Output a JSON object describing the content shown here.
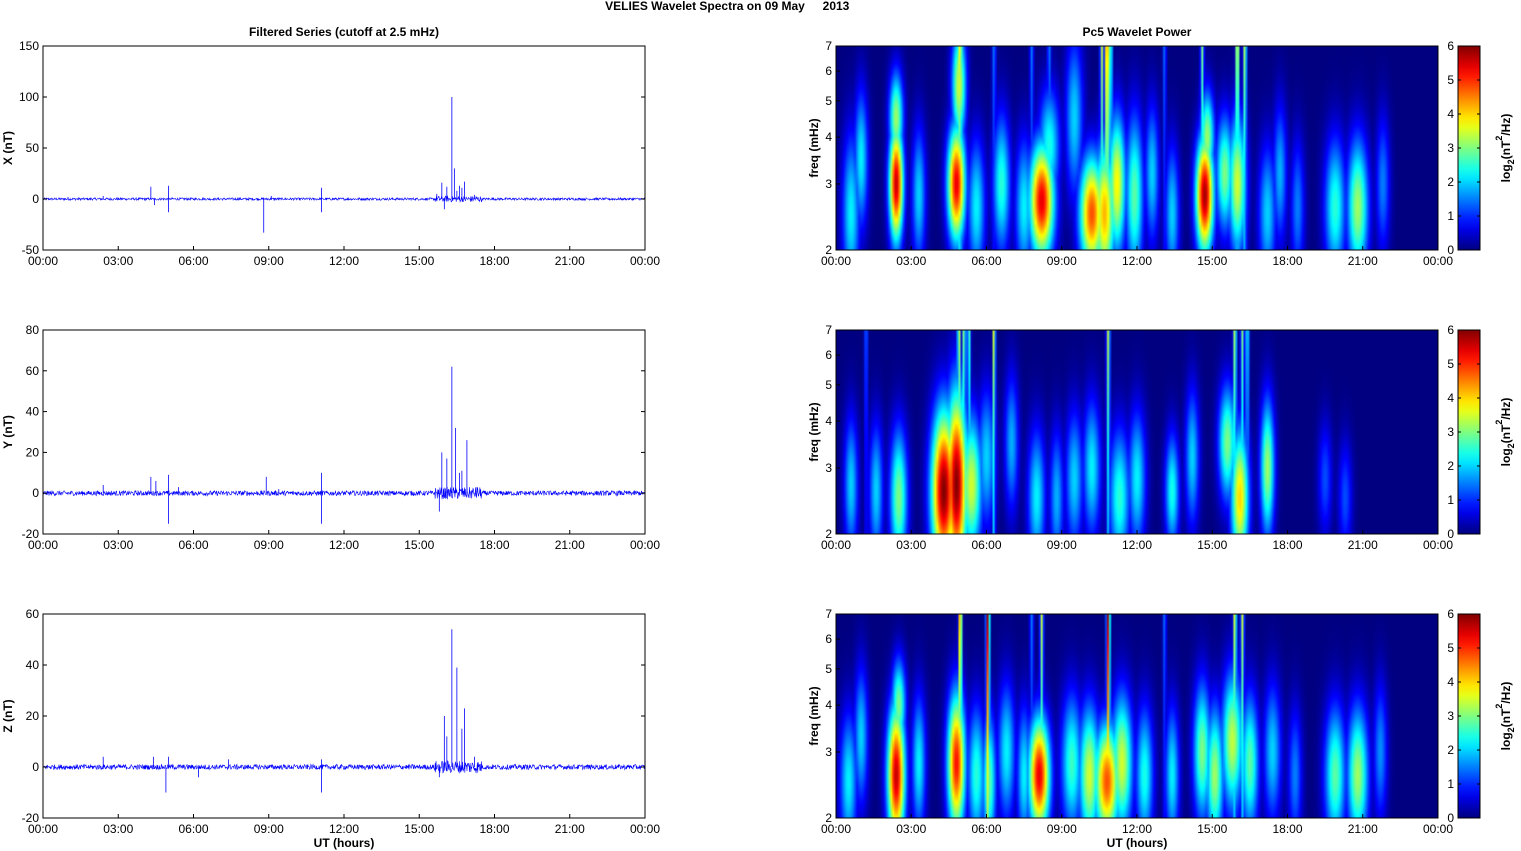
{
  "figure": {
    "suptitle_left": "VELIES Wavelet Spectra on 09 May",
    "suptitle_right": "2013",
    "left_column_title": "Filtered Series (cutoff at 2.5 mHz)",
    "right_column_title": "Pc5 Wavelet Power",
    "xlabel": "UT (hours)",
    "colors": {
      "trace": "#0000ff",
      "background_field": "#00008f"
    }
  },
  "chart_data": [
    {
      "type": "line",
      "id": "x",
      "ylabel": "X (nT)",
      "ylim": [
        -50,
        150
      ],
      "yticks": [
        "-50",
        "0",
        "50",
        "100",
        "150"
      ],
      "xticks": [
        "00:00",
        "03:00",
        "06:00",
        "09:00",
        "12:00",
        "15:00",
        "18:00",
        "21:00",
        "00:00"
      ],
      "xlim_hours": [
        0,
        24
      ],
      "spikes": [
        [
          1.0,
          2
        ],
        [
          2.4,
          3
        ],
        [
          4.3,
          12
        ],
        [
          4.45,
          -6
        ],
        [
          5.0,
          13
        ],
        [
          5.0,
          -13
        ],
        [
          8.8,
          -33
        ],
        [
          9.1,
          3
        ],
        [
          11.1,
          11
        ],
        [
          11.1,
          -13
        ],
        [
          15.7,
          5
        ],
        [
          15.9,
          16
        ],
        [
          16.0,
          -10
        ],
        [
          16.1,
          12
        ],
        [
          16.3,
          100
        ],
        [
          16.4,
          30
        ],
        [
          16.5,
          8
        ],
        [
          16.6,
          13
        ],
        [
          16.7,
          11
        ],
        [
          16.8,
          17
        ],
        [
          17.2,
          4
        ]
      ],
      "noise_amplitude": 1.2,
      "burst": [
        15.6,
        17.5
      ],
      "burst_amplitude": 3
    },
    {
      "type": "line",
      "id": "y",
      "ylabel": "Y (nT)",
      "ylim": [
        -20,
        80
      ],
      "yticks": [
        "-20",
        "0",
        "20",
        "40",
        "60",
        "80"
      ],
      "xticks": [
        "00:00",
        "03:00",
        "06:00",
        "09:00",
        "12:00",
        "15:00",
        "18:00",
        "21:00",
        "00:00"
      ],
      "xlim_hours": [
        0,
        24
      ],
      "spikes": [
        [
          2.4,
          4
        ],
        [
          4.3,
          8
        ],
        [
          4.5,
          6
        ],
        [
          5.0,
          9
        ],
        [
          5.0,
          -15
        ],
        [
          5.4,
          3
        ],
        [
          8.9,
          8
        ],
        [
          9.4,
          2
        ],
        [
          11.1,
          10
        ],
        [
          11.1,
          -15
        ],
        [
          15.8,
          -9
        ],
        [
          15.9,
          20
        ],
        [
          16.1,
          17
        ],
        [
          16.3,
          62
        ],
        [
          16.45,
          32
        ],
        [
          16.6,
          10
        ],
        [
          16.7,
          11
        ],
        [
          16.9,
          26
        ],
        [
          17.3,
          3
        ]
      ],
      "noise_amplitude": 1.2,
      "burst": [
        15.6,
        17.5
      ],
      "burst_amplitude": 3
    },
    {
      "type": "line",
      "id": "z",
      "ylabel": "Z (nT)",
      "ylim": [
        -20,
        60
      ],
      "yticks": [
        "-20",
        "0",
        "20",
        "40",
        "60"
      ],
      "xticks": [
        "00:00",
        "03:00",
        "06:00",
        "09:00",
        "12:00",
        "15:00",
        "18:00",
        "21:00",
        "00:00"
      ],
      "xlim_hours": [
        0,
        24
      ],
      "spikes": [
        [
          2.4,
          4
        ],
        [
          4.4,
          4
        ],
        [
          4.9,
          -10
        ],
        [
          5.0,
          4
        ],
        [
          6.2,
          -4
        ],
        [
          7.4,
          3
        ],
        [
          11.1,
          3
        ],
        [
          11.1,
          -10
        ],
        [
          15.8,
          -4
        ],
        [
          16.0,
          20
        ],
        [
          16.1,
          12
        ],
        [
          16.3,
          54
        ],
        [
          16.5,
          39
        ],
        [
          16.7,
          15
        ],
        [
          16.8,
          23
        ],
        [
          17.2,
          4
        ]
      ],
      "noise_amplitude": 1.0,
      "burst": [
        15.6,
        17.5
      ],
      "burst_amplitude": 2.5
    },
    {
      "type": "heatmap",
      "id": "wx",
      "ylabel": "freq (mHz)",
      "yscale": "log",
      "ylim_mHz": [
        2,
        7
      ],
      "yticks": [
        "2",
        "3",
        "4",
        "5",
        "6",
        "7"
      ],
      "xticks": [
        "00:00",
        "03:00",
        "06:00",
        "09:00",
        "12:00",
        "15:00",
        "18:00",
        "21:00",
        "00:00"
      ],
      "colorbar": {
        "ticks": [
          "0",
          "1",
          "2",
          "3",
          "4",
          "5",
          "6"
        ],
        "label_base": "log",
        "label_sub": "2",
        "label_mid": "(nT",
        "label_sup": "2",
        "label_end": "/Hz)",
        "range": [
          0,
          6
        ]
      },
      "blobs": [
        [
          0.6,
          2.5,
          2.2,
          0.25,
          0.35
        ],
        [
          1.0,
          3.5,
          2.2,
          0.2,
          0.3
        ],
        [
          2.4,
          3.0,
          5.6,
          0.2,
          0.25
        ],
        [
          2.4,
          4.5,
          3.2,
          0.2,
          0.2
        ],
        [
          3.3,
          2.8,
          2.0,
          0.2,
          0.3
        ],
        [
          4.8,
          3.0,
          5.4,
          0.25,
          0.25
        ],
        [
          4.9,
          5.5,
          3.5,
          0.2,
          0.25
        ],
        [
          5.6,
          2.6,
          2.2,
          0.25,
          0.3
        ],
        [
          6.6,
          3.0,
          2.5,
          0.25,
          0.3
        ],
        [
          7.5,
          2.6,
          2.2,
          0.25,
          0.3
        ],
        [
          8.2,
          2.7,
          5.4,
          0.35,
          0.25
        ],
        [
          8.5,
          3.8,
          2.4,
          0.3,
          0.25
        ],
        [
          9.5,
          4.5,
          2.0,
          0.25,
          0.35
        ],
        [
          10.2,
          2.5,
          4.8,
          0.35,
          0.25
        ],
        [
          10.7,
          2.5,
          4.2,
          0.3,
          0.3
        ],
        [
          11.2,
          3.0,
          3.8,
          0.25,
          0.3
        ],
        [
          11.9,
          2.8,
          2.8,
          0.25,
          0.35
        ],
        [
          12.6,
          3.2,
          2.0,
          0.2,
          0.3
        ],
        [
          13.4,
          2.5,
          2.0,
          0.2,
          0.3
        ],
        [
          14.7,
          2.8,
          5.8,
          0.25,
          0.25
        ],
        [
          14.8,
          4.0,
          3.2,
          0.2,
          0.2
        ],
        [
          15.5,
          3.2,
          3.0,
          0.25,
          0.25
        ],
        [
          16.0,
          3.0,
          3.5,
          0.25,
          0.3
        ],
        [
          17.2,
          2.5,
          2.0,
          0.25,
          0.3
        ],
        [
          17.7,
          3.2,
          1.8,
          0.2,
          0.3
        ],
        [
          18.4,
          2.6,
          1.5,
          0.2,
          0.3
        ],
        [
          19.9,
          2.6,
          2.5,
          0.3,
          0.3
        ],
        [
          20.8,
          2.6,
          3.2,
          0.3,
          0.3
        ],
        [
          21.8,
          3.0,
          1.5,
          0.2,
          0.3
        ]
      ],
      "streaks": [
        [
          4.95,
          4.5,
          0.05
        ],
        [
          10.6,
          3.5,
          0.05
        ],
        [
          10.8,
          5.5,
          0.05
        ],
        [
          10.95,
          3.0,
          0.05
        ],
        [
          14.6,
          3.0,
          0.05
        ],
        [
          16.0,
          4.2,
          0.05
        ],
        [
          16.3,
          3.5,
          0.05
        ],
        [
          7.8,
          1.5,
          0.06
        ],
        [
          6.3,
          1.5,
          0.06
        ],
        [
          8.5,
          1.5,
          0.06
        ],
        [
          13.1,
          1.5,
          0.05
        ]
      ]
    },
    {
      "type": "heatmap",
      "id": "wy",
      "ylabel": "freq (mHz)",
      "yscale": "log",
      "ylim_mHz": [
        2,
        7
      ],
      "yticks": [
        "2",
        "3",
        "4",
        "5",
        "6",
        "7"
      ],
      "xticks": [
        "00:00",
        "03:00",
        "06:00",
        "09:00",
        "12:00",
        "15:00",
        "18:00",
        "21:00",
        "00:00"
      ],
      "colorbar": {
        "ticks": [
          "0",
          "1",
          "2",
          "3",
          "4",
          "5",
          "6"
        ],
        "label_base": "log",
        "label_sub": "2",
        "label_mid": "(nT",
        "label_sup": "2",
        "label_end": "/Hz)",
        "range": [
          0,
          6
        ]
      },
      "blobs": [
        [
          0.6,
          2.7,
          2.0,
          0.2,
          0.3
        ],
        [
          1.6,
          2.6,
          2.0,
          0.2,
          0.3
        ],
        [
          2.5,
          2.5,
          3.0,
          0.25,
          0.3
        ],
        [
          4.3,
          2.6,
          6.0,
          0.35,
          0.35
        ],
        [
          4.8,
          2.7,
          6.0,
          0.3,
          0.4
        ],
        [
          5.4,
          2.7,
          3.5,
          0.3,
          0.3
        ],
        [
          6.0,
          3.2,
          2.0,
          0.25,
          0.3
        ],
        [
          7.0,
          3.5,
          1.8,
          0.2,
          0.3
        ],
        [
          8.0,
          2.5,
          2.2,
          0.25,
          0.3
        ],
        [
          8.8,
          2.5,
          1.8,
          0.2,
          0.3
        ],
        [
          9.5,
          2.8,
          2.0,
          0.25,
          0.3
        ],
        [
          10.2,
          3.0,
          2.2,
          0.25,
          0.3
        ],
        [
          11.3,
          2.5,
          2.5,
          0.3,
          0.3
        ],
        [
          12.0,
          2.8,
          2.2,
          0.25,
          0.3
        ],
        [
          13.4,
          2.6,
          2.4,
          0.2,
          0.25
        ],
        [
          14.2,
          3.2,
          2.0,
          0.2,
          0.3
        ],
        [
          15.6,
          3.5,
          3.0,
          0.25,
          0.25
        ],
        [
          16.1,
          2.5,
          4.0,
          0.25,
          0.3
        ],
        [
          17.2,
          3.0,
          3.2,
          0.2,
          0.3
        ],
        [
          19.5,
          2.8,
          1.2,
          0.2,
          0.25
        ],
        [
          20.3,
          2.5,
          1.2,
          0.2,
          0.25
        ]
      ],
      "streaks": [
        [
          4.9,
          3.6,
          0.05
        ],
        [
          5.1,
          3.2,
          0.05
        ],
        [
          5.3,
          2.8,
          0.05
        ],
        [
          6.3,
          4.0,
          0.04
        ],
        [
          10.85,
          3.5,
          0.05
        ],
        [
          15.9,
          3.5,
          0.05
        ],
        [
          16.2,
          3.0,
          0.05
        ],
        [
          16.4,
          2.5,
          0.05
        ],
        [
          1.2,
          1.5,
          0.05
        ]
      ]
    },
    {
      "type": "heatmap",
      "id": "wz",
      "ylabel": "freq (mHz)",
      "yscale": "log",
      "ylim_mHz": [
        2,
        7
      ],
      "yticks": [
        "2",
        "3",
        "4",
        "5",
        "6",
        "7"
      ],
      "xticks": [
        "00:00",
        "03:00",
        "06:00",
        "09:00",
        "12:00",
        "15:00",
        "18:00",
        "21:00",
        "00:00"
      ],
      "colorbar": {
        "ticks": [
          "0",
          "1",
          "2",
          "3",
          "4",
          "5",
          "6"
        ],
        "label_base": "log",
        "label_sub": "2",
        "label_mid": "(nT",
        "label_sup": "2",
        "label_end": "/Hz)",
        "range": [
          0,
          6
        ]
      },
      "blobs": [
        [
          0.5,
          2.5,
          2.2,
          0.25,
          0.3
        ],
        [
          1.0,
          3.3,
          2.0,
          0.2,
          0.3
        ],
        [
          2.4,
          2.6,
          5.6,
          0.25,
          0.3
        ],
        [
          2.5,
          4.0,
          3.0,
          0.2,
          0.2
        ],
        [
          3.3,
          2.8,
          2.2,
          0.2,
          0.3
        ],
        [
          4.8,
          2.8,
          5.2,
          0.25,
          0.3
        ],
        [
          5.6,
          2.6,
          2.5,
          0.25,
          0.3
        ],
        [
          6.1,
          2.5,
          2.8,
          0.2,
          0.3
        ],
        [
          6.8,
          3.0,
          2.2,
          0.25,
          0.3
        ],
        [
          7.5,
          2.6,
          2.2,
          0.2,
          0.3
        ],
        [
          8.1,
          2.6,
          5.4,
          0.3,
          0.25
        ],
        [
          9.4,
          2.8,
          2.6,
          0.3,
          0.3
        ],
        [
          10.1,
          2.6,
          3.5,
          0.3,
          0.3
        ],
        [
          10.8,
          2.5,
          4.8,
          0.35,
          0.25
        ],
        [
          11.4,
          2.8,
          3.5,
          0.3,
          0.3
        ],
        [
          12.3,
          2.6,
          2.4,
          0.25,
          0.3
        ],
        [
          13.4,
          2.6,
          2.2,
          0.2,
          0.3
        ],
        [
          14.6,
          3.0,
          3.0,
          0.25,
          0.3
        ],
        [
          15.1,
          2.6,
          3.2,
          0.25,
          0.3
        ],
        [
          15.8,
          3.2,
          3.4,
          0.3,
          0.3
        ],
        [
          16.5,
          2.8,
          2.8,
          0.25,
          0.3
        ],
        [
          17.4,
          3.0,
          2.0,
          0.25,
          0.3
        ],
        [
          18.3,
          2.6,
          1.5,
          0.2,
          0.3
        ],
        [
          19.9,
          2.6,
          2.8,
          0.3,
          0.3
        ],
        [
          20.8,
          2.6,
          3.2,
          0.3,
          0.3
        ],
        [
          21.7,
          3.0,
          1.6,
          0.2,
          0.3
        ]
      ],
      "streaks": [
        [
          4.95,
          5.0,
          0.05
        ],
        [
          6.05,
          6.0,
          0.05
        ],
        [
          10.85,
          6.0,
          0.05
        ],
        [
          8.2,
          3.5,
          0.05
        ],
        [
          15.9,
          3.8,
          0.05
        ],
        [
          16.2,
          3.5,
          0.05
        ],
        [
          7.8,
          1.5,
          0.06
        ],
        [
          13.1,
          1.5,
          0.05
        ]
      ]
    }
  ]
}
